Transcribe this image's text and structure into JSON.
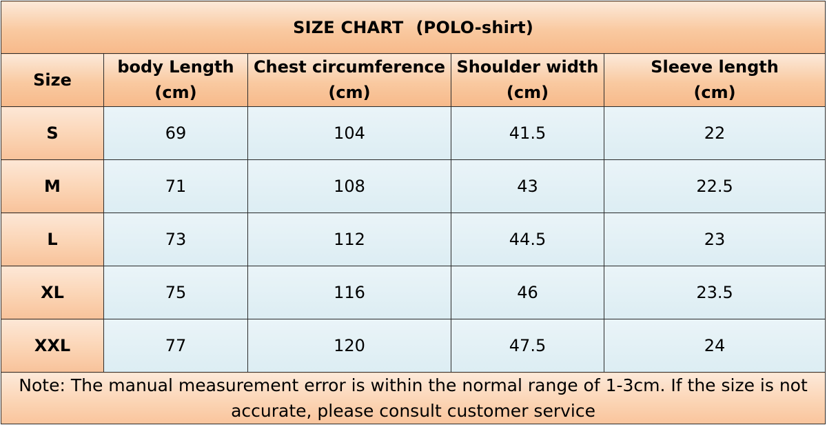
{
  "title": {
    "main": "SIZE CHART",
    "sub": "(POLO-shirt)"
  },
  "columns": {
    "size": "Size",
    "body_length": [
      "body Length",
      "(cm)"
    ],
    "chest": [
      "Chest circumference",
      "(cm)"
    ],
    "shoulder": [
      "Shoulder width",
      "(cm)"
    ],
    "sleeve": [
      "Sleeve length",
      "(cm)"
    ]
  },
  "rows": [
    {
      "size": "S",
      "body_length": "69",
      "chest": "104",
      "shoulder": "41.5",
      "sleeve": "22"
    },
    {
      "size": "M",
      "body_length": "71",
      "chest": "108",
      "shoulder": "43",
      "sleeve": "22.5"
    },
    {
      "size": "L",
      "body_length": "73",
      "chest": "112",
      "shoulder": "44.5",
      "sleeve": "23"
    },
    {
      "size": "XL",
      "body_length": "75",
      "chest": "116",
      "shoulder": "46",
      "sleeve": "23.5"
    },
    {
      "size": "XXL",
      "body_length": "77",
      "chest": "120",
      "shoulder": "47.5",
      "sleeve": "24"
    }
  ],
  "note": {
    "line1": "Note: The manual measurement error is within the normal range of 1-3cm. If the size is not",
    "line2": "accurate, please consult customer service"
  },
  "colors": {
    "header_bg": "#f9c9a0",
    "cell_bg": "#dcedf3",
    "border": "#2b2b2b"
  }
}
